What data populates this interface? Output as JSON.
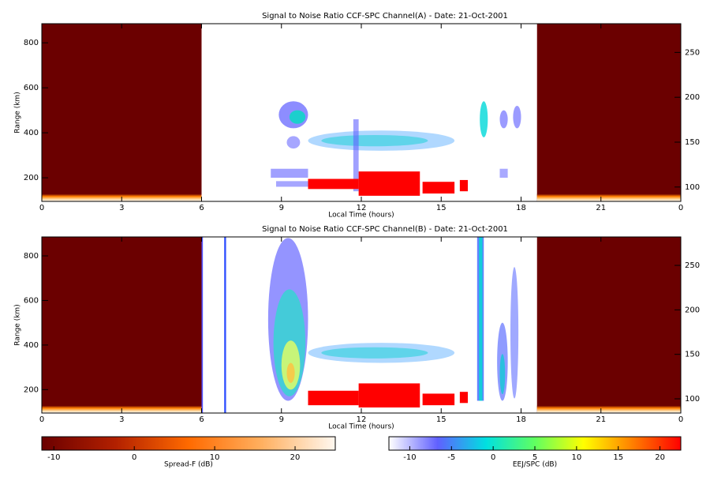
{
  "chart_data": [
    {
      "type": "heatmap",
      "title": "Signal to Noise Ratio CCF-SPC Channel(A) - Date: 21-Oct-2001",
      "xlabel": "Local Time (hours)",
      "ylabel": "Range (km)",
      "xlim": [
        0,
        24
      ],
      "xticks": [
        0,
        3,
        6,
        9,
        12,
        15,
        18,
        21,
        {
          "value": 24,
          "label": "0"
        }
      ],
      "ylim": [
        95,
        885
      ],
      "yticks": [
        200,
        400,
        600,
        800
      ],
      "y2lim": [
        84,
        282
      ],
      "y2ticks": [
        100,
        150,
        200,
        250
      ]
    },
    {
      "type": "heatmap",
      "title": "Signal to Noise Ratio CCF-SPC Channel(B) - Date: 21-Oct-2001",
      "xlabel": "Local Time (hours)",
      "ylabel": "Range (km)",
      "xlim": [
        0,
        24
      ],
      "xticks": [
        0,
        3,
        6,
        9,
        12,
        15,
        18,
        21,
        {
          "value": 24,
          "label": "0"
        }
      ],
      "ylim": [
        95,
        885
      ],
      "yticks": [
        200,
        400,
        600,
        800
      ],
      "y2lim": [
        84,
        282
      ],
      "y2ticks": [
        100,
        150,
        200,
        250
      ]
    }
  ],
  "colorbars": [
    {
      "label": "Spread-F (dB)",
      "lim": [
        -11.5,
        25
      ],
      "ticks": [
        -10,
        0,
        10,
        20
      ],
      "colors": [
        "#6b0000",
        "#b22000",
        "#ff6a00",
        "#ffb060",
        "#fff8f0"
      ]
    },
    {
      "label": "EEJ/SPC (dB)",
      "lim": [
        -12.5,
        22.5
      ],
      "ticks": [
        -10,
        -5,
        0,
        5,
        10,
        15,
        20
      ],
      "colors": [
        "#ffffff",
        "#6060ff",
        "#00e0e0",
        "#60ff60",
        "#ffff00",
        "#ff8000",
        "#ff0000"
      ]
    }
  ]
}
